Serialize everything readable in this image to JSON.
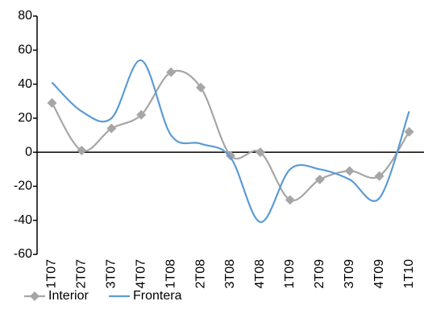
{
  "chart_data": {
    "type": "line",
    "categories": [
      "1T07",
      "2T07",
      "3T07",
      "4T07",
      "1T08",
      "2T08",
      "3T08",
      "4T08",
      "1T09",
      "2T09",
      "3T09",
      "4T09",
      "1T10"
    ],
    "series": [
      {
        "name": "Interior",
        "color": "#a6a6a6",
        "marker": "diamond",
        "values": [
          29,
          1,
          14,
          22,
          47,
          38,
          -2,
          0,
          -28,
          -16,
          -11,
          -14,
          12
        ]
      },
      {
        "name": "Frontera",
        "color": "#5b9bd5",
        "values": [
          41,
          24,
          20,
          54,
          10,
          5,
          -3,
          -41,
          -10,
          -10,
          -16,
          -27,
          24
        ]
      }
    ],
    "ylim": [
      -60,
      80
    ],
    "yticks": [
      -60,
      -40,
      -20,
      0,
      20,
      40,
      60,
      80
    ],
    "smooth": true,
    "legend": "bottom"
  }
}
